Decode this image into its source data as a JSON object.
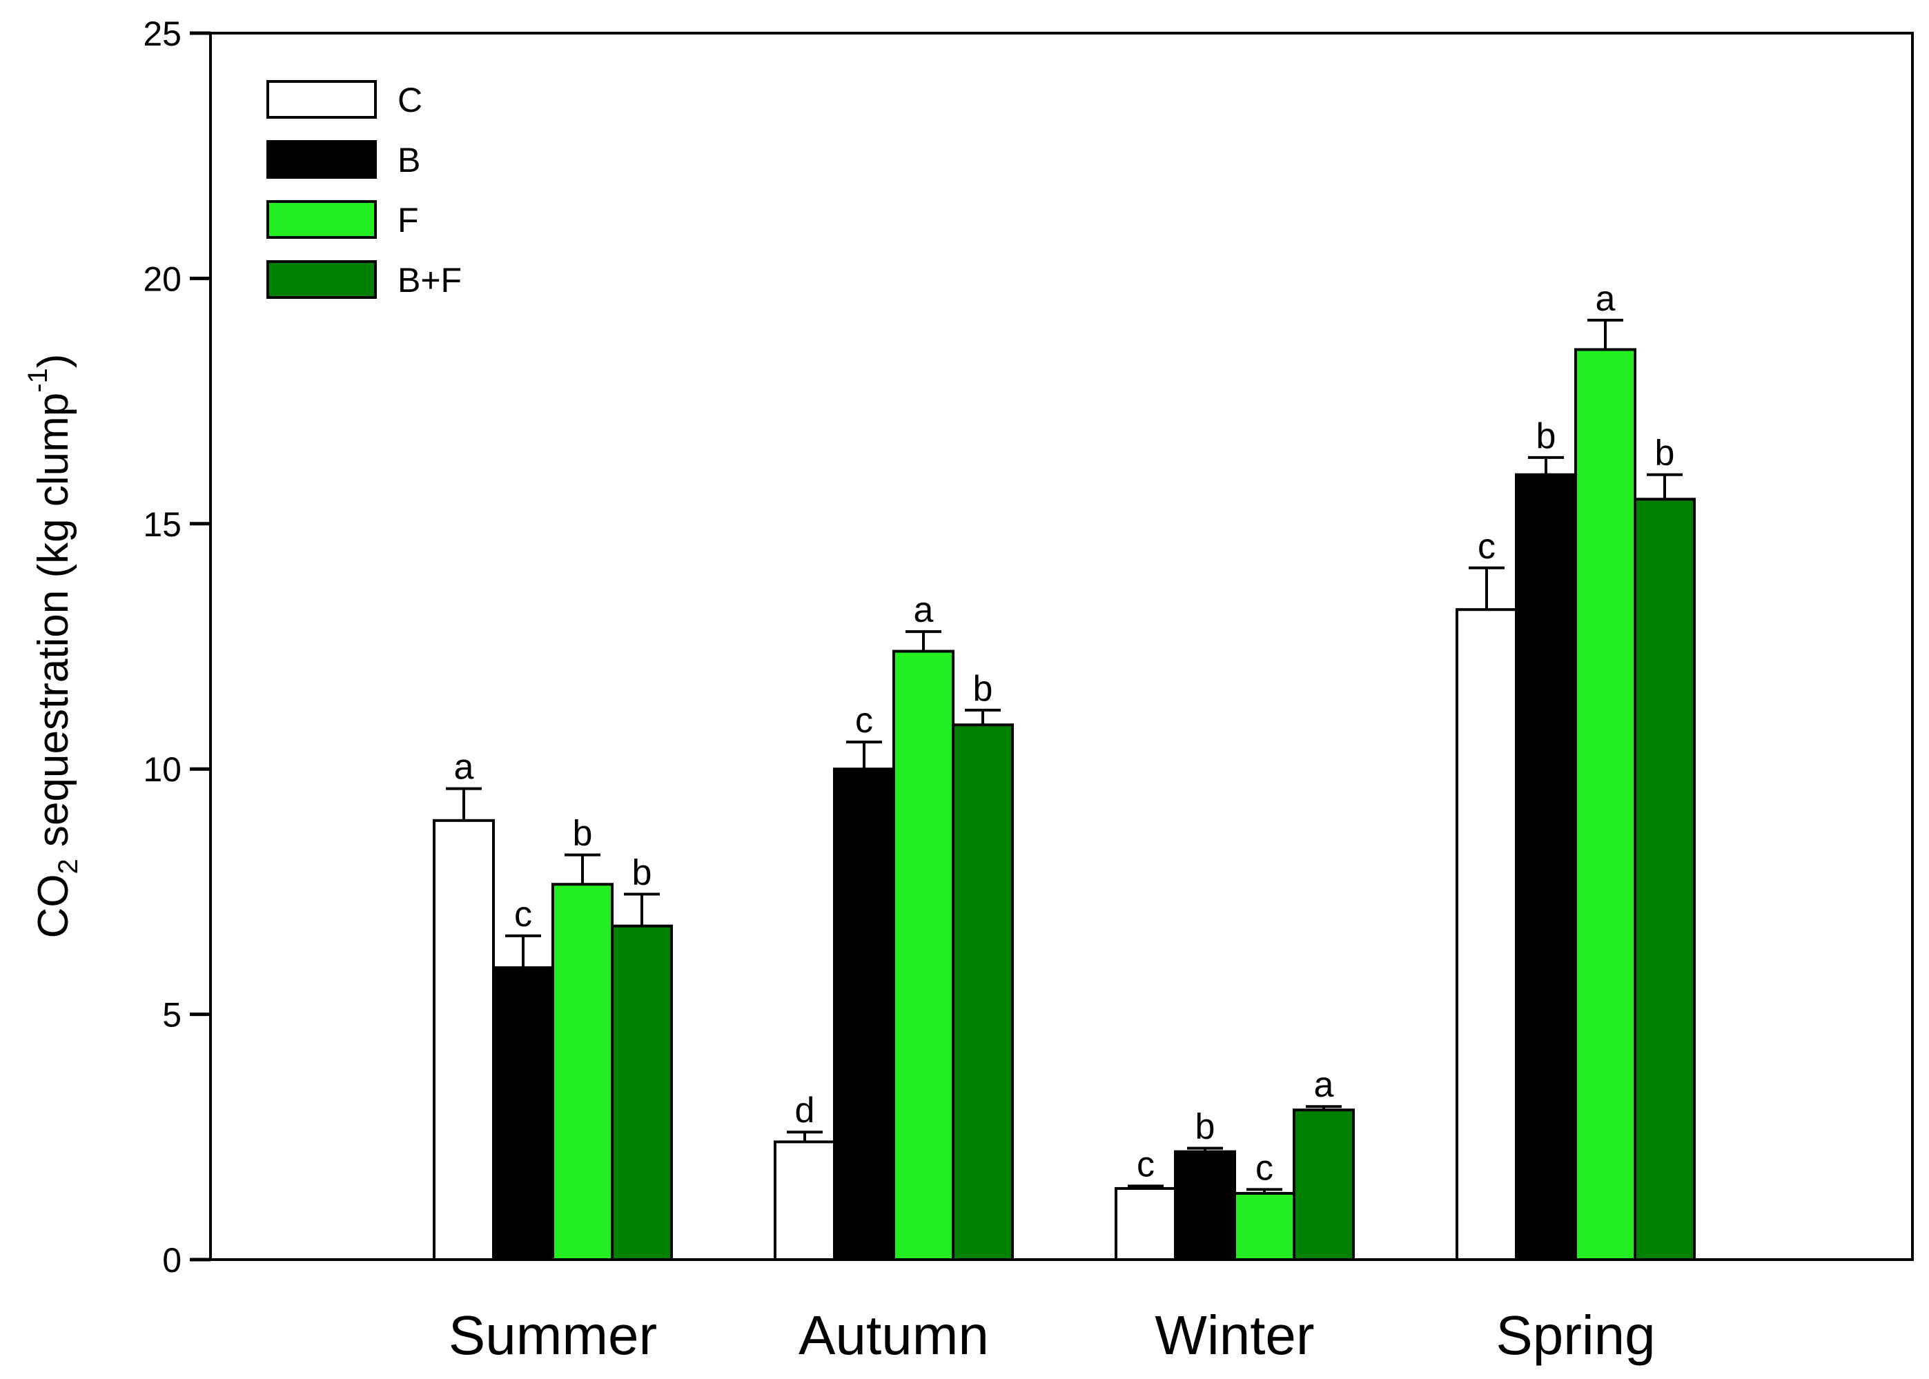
{
  "chart_data": {
    "type": "bar",
    "title": "",
    "xlabel": "",
    "ylabel": {
      "prefix": "CO",
      "subscript": "2",
      "middle": " sequestration (kg clump",
      "superscript": "-1",
      "suffix": ")"
    },
    "ylim": [
      0,
      25
    ],
    "yticks": [
      "0",
      "5",
      "10",
      "15",
      "20",
      "25"
    ],
    "categories": [
      "Summer",
      "Autumn",
      "Winter",
      "Spring"
    ],
    "series": [
      {
        "name": "C",
        "color": "#ffffff",
        "values": [
          8.95,
          2.4,
          1.45,
          13.25
        ],
        "errors": [
          0.65,
          0.2,
          0.05,
          0.85
        ],
        "labels": [
          "a",
          "d",
          "c",
          "c"
        ]
      },
      {
        "name": "B",
        "color": "#000000",
        "values": [
          5.95,
          10.0,
          2.2,
          16.0
        ],
        "errors": [
          0.65,
          0.55,
          0.07,
          0.35
        ],
        "labels": [
          "c",
          "c",
          "b",
          "b"
        ]
      },
      {
        "name": "F",
        "color": "#22ee22",
        "values": [
          7.65,
          12.4,
          1.35,
          18.55
        ],
        "errors": [
          0.6,
          0.4,
          0.08,
          0.6
        ],
        "labels": [
          "b",
          "a",
          "c",
          "a"
        ]
      },
      {
        "name": "B+F",
        "color": "#008000",
        "values": [
          6.8,
          10.9,
          3.05,
          15.5
        ],
        "errors": [
          0.65,
          0.3,
          0.07,
          0.5
        ],
        "labels": [
          "b",
          "b",
          "a",
          "b"
        ]
      }
    ],
    "legend_position": "top-left",
    "grid": false
  }
}
